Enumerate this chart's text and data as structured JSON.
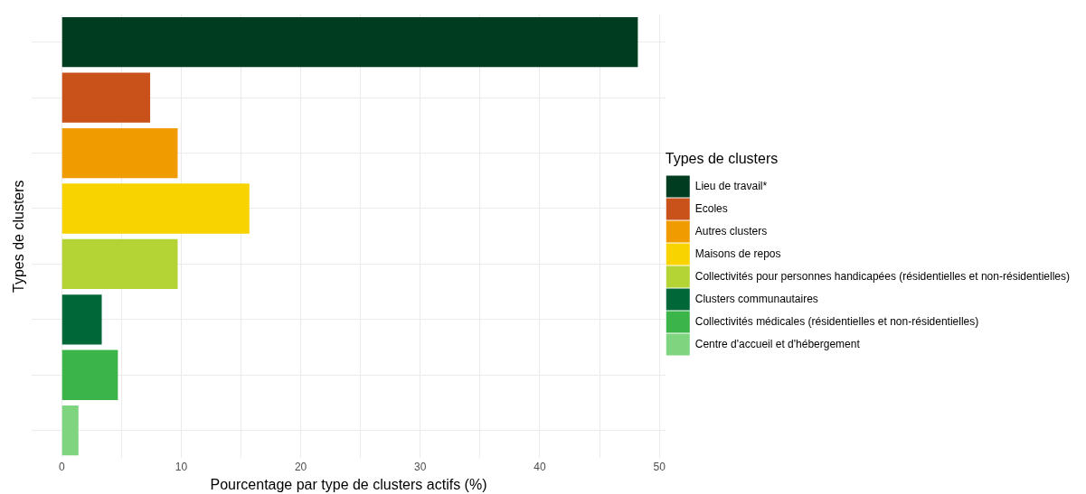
{
  "chart_data": {
    "type": "bar",
    "orientation": "horizontal",
    "stacked": true,
    "xlabel": "Pourcentage par type de clusters actifs (%)",
    "ylabel": "Types de clusters",
    "legend_title": "Types de clusters",
    "legend": "right",
    "grid": true,
    "tick_labels": "x",
    "categories": [
      null,
      null,
      null,
      null,
      null,
      null,
      null,
      null
    ],
    "xlim": [
      -2.5,
      50.5
    ],
    "xticks": [
      0,
      {
        "value": 5,
        "label": null
      },
      10,
      {
        "value": 15,
        "label": null
      },
      20,
      {
        "value": 25,
        "label": null
      },
      30,
      {
        "value": 35,
        "label": null
      },
      40,
      {
        "value": 45,
        "label": null
      },
      50
    ],
    "series": [
      {
        "name": "Lieu de travail*",
        "color": "#003d20",
        "values": [
          48.2,
          null,
          null,
          null,
          null,
          null,
          null,
          null
        ]
      },
      {
        "name": "Ecoles",
        "color": "#c9511a",
        "values": [
          null,
          7.4,
          null,
          null,
          null,
          null,
          null,
          null
        ]
      },
      {
        "name": "Autres clusters",
        "color": "#f09c00",
        "values": [
          null,
          null,
          9.7,
          null,
          null,
          null,
          null,
          null
        ]
      },
      {
        "name": "Maisons de repos",
        "color": "#f9d300",
        "values": [
          null,
          null,
          null,
          15.7,
          null,
          null,
          null,
          null
        ]
      },
      {
        "name": "Collectivités pour personnes handicapées (résidentielles et non-résidentielles)",
        "color": "#b4d335",
        "values": [
          null,
          null,
          null,
          null,
          9.7,
          null,
          null,
          null
        ]
      },
      {
        "name": "Clusters communautaires",
        "color": "#006838",
        "values": [
          null,
          null,
          null,
          null,
          null,
          3.35,
          null,
          null
        ]
      },
      {
        "name": "Collectivités médicales (résidentielles et non-résidentielles)",
        "color": "#3bb44a",
        "values": [
          null,
          null,
          null,
          null,
          null,
          null,
          4.7,
          null
        ]
      },
      {
        "name": "Centre d'accueil et d'hébergement",
        "color": "#7fd47f",
        "values": [
          null,
          null,
          null,
          null,
          null,
          null,
          null,
          1.4
        ]
      }
    ]
  }
}
